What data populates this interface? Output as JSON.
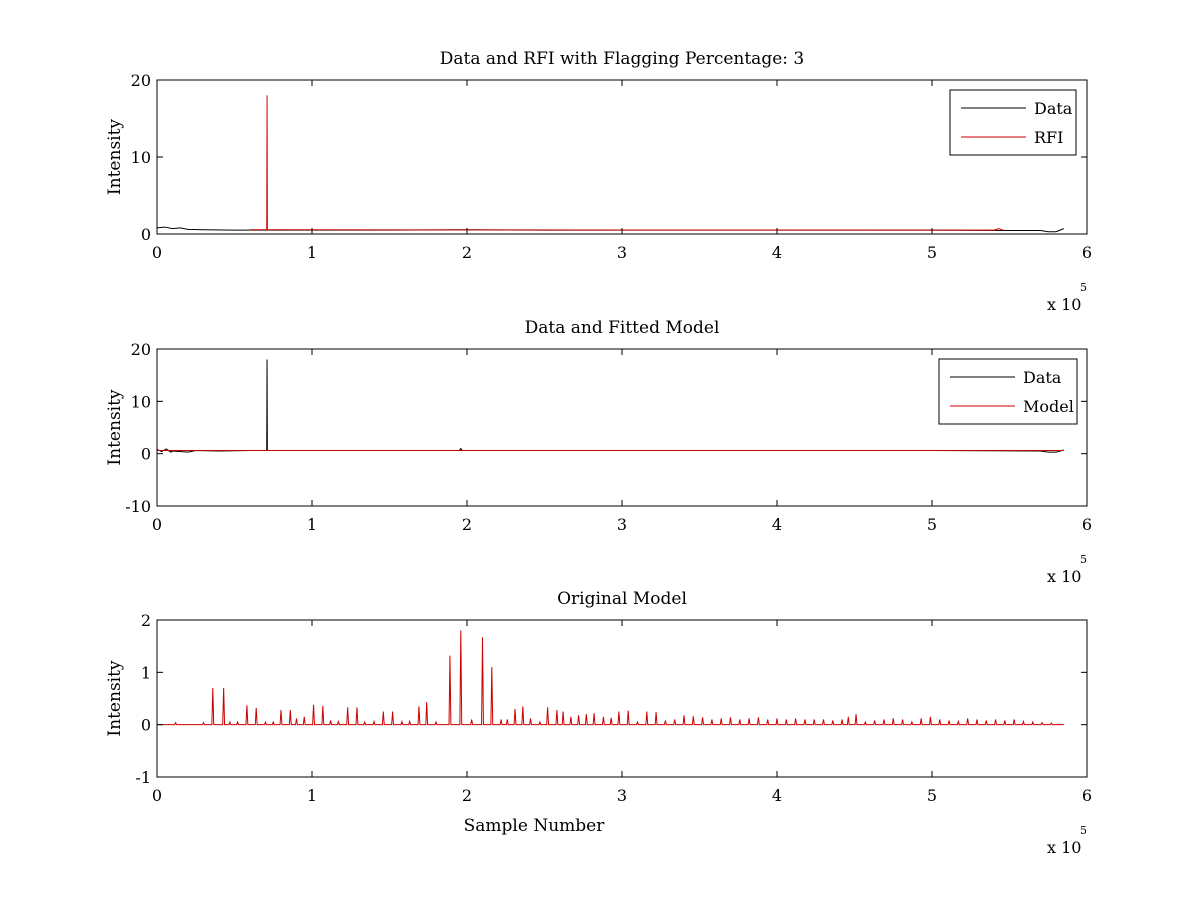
{
  "chart_data": [
    {
      "type": "line",
      "title": "Data and RFI with Flagging Percentage: 3",
      "xlabel": "",
      "ylabel": "Intensity",
      "xlim": [
        0,
        600000
      ],
      "ylim": [
        0,
        20
      ],
      "xticks": [
        0,
        1,
        2,
        3,
        4,
        5,
        6
      ],
      "yticks": [
        0,
        10,
        20
      ],
      "x_multiplier": {
        "base": "x 10",
        "exponent": "5"
      },
      "grid": false,
      "legend_position": "top-right",
      "series": [
        {
          "name": "Data",
          "color": "#000000",
          "x": [
            0,
            5000,
            10000,
            15000,
            20000,
            30000,
            50000,
            70000,
            100000,
            150000,
            200000,
            250000,
            300000,
            350000,
            400000,
            450000,
            500000,
            550000,
            570000,
            575000,
            580000,
            585000
          ],
          "y": [
            0.8,
            0.9,
            0.7,
            0.8,
            0.6,
            0.55,
            0.5,
            0.5,
            0.5,
            0.5,
            0.55,
            0.5,
            0.5,
            0.5,
            0.5,
            0.5,
            0.5,
            0.45,
            0.45,
            0.3,
            0.3,
            0.7
          ]
        },
        {
          "name": "RFI",
          "color": "#cc0000",
          "x": [
            60000,
            70800,
            71000,
            71200,
            80000,
            540000,
            543000,
            546000
          ],
          "y": [
            0.55,
            0.55,
            18.0,
            0.55,
            0.55,
            0.5,
            0.7,
            0.5
          ]
        }
      ]
    },
    {
      "type": "line",
      "title": "Data and Fitted Model",
      "xlabel": "",
      "ylabel": "Intensity",
      "xlim": [
        0,
        600000
      ],
      "ylim": [
        -10,
        20
      ],
      "xticks": [
        0,
        1,
        2,
        3,
        4,
        5,
        6
      ],
      "yticks": [
        -10,
        0,
        10,
        20
      ],
      "x_multiplier": {
        "base": "x 10",
        "exponent": "5"
      },
      "grid": false,
      "legend_position": "top-right",
      "series": [
        {
          "name": "Data",
          "color": "#000000",
          "x": [
            0,
            3000,
            6000,
            9000,
            10000,
            20000,
            25000,
            40000,
            60000,
            70800,
            71000,
            71200,
            100000,
            195000,
            196000,
            197000,
            300000,
            400000,
            500000,
            570000,
            575000,
            580000,
            585000
          ],
          "y": [
            0.8,
            0.4,
            0.9,
            0.3,
            0.5,
            0.3,
            0.6,
            0.5,
            0.6,
            0.6,
            18.0,
            0.6,
            0.6,
            0.6,
            1.0,
            0.6,
            0.6,
            0.6,
            0.6,
            0.5,
            0.3,
            0.3,
            0.7
          ]
        },
        {
          "name": "Model",
          "color": "#cc0000",
          "x": [
            0,
            585000
          ],
          "y": [
            0.6,
            0.6
          ]
        }
      ]
    },
    {
      "type": "line",
      "title": "Original Model",
      "xlabel": "Sample Number",
      "ylabel": "Intensity",
      "xlim": [
        0,
        600000
      ],
      "ylim": [
        -1,
        2
      ],
      "xticks": [
        0,
        1,
        2,
        3,
        4,
        5,
        6
      ],
      "yticks": [
        -1,
        0,
        1,
        2
      ],
      "x_multiplier": {
        "base": "x 10",
        "exponent": "5"
      },
      "grid": false,
      "series": [
        {
          "color": "#cc0000",
          "baseline": 0,
          "x_end": 585000,
          "peaks": {
            "x": [
              12000,
              30000,
              36000,
              43000,
              47000,
              52000,
              58000,
              64000,
              70000,
              75000,
              80000,
              86000,
              90000,
              95000,
              101000,
              107000,
              112000,
              117000,
              123000,
              129000,
              134000,
              140000,
              146000,
              152000,
              158000,
              163000,
              169000,
              174000,
              180000,
              189000,
              196000,
              203000,
              210000,
              216000,
              222000,
              226000,
              231000,
              236000,
              241000,
              247000,
              252000,
              258000,
              262000,
              267000,
              272000,
              277000,
              282000,
              288000,
              293000,
              298000,
              304000,
              310000,
              316000,
              322000,
              328000,
              334000,
              340000,
              346000,
              352000,
              358000,
              364000,
              370000,
              376000,
              382000,
              388000,
              394000,
              400000,
              406000,
              412000,
              418000,
              424000,
              430000,
              436000,
              442000,
              446000,
              451000,
              457000,
              463000,
              469000,
              475000,
              481000,
              487000,
              493000,
              499000,
              505000,
              511000,
              517000,
              523000,
              529000,
              535000,
              541000,
              547000,
              553000,
              559000,
              565000,
              571000,
              577000
            ],
            "y": [
              0.04,
              0.04,
              0.7,
              0.7,
              0.05,
              0.05,
              0.37,
              0.32,
              0.05,
              0.05,
              0.28,
              0.28,
              0.12,
              0.15,
              0.38,
              0.36,
              0.08,
              0.06,
              0.33,
              0.33,
              0.05,
              0.06,
              0.25,
              0.25,
              0.06,
              0.06,
              0.35,
              0.43,
              0.05,
              1.32,
              1.8,
              0.1,
              1.67,
              1.1,
              0.1,
              0.1,
              0.3,
              0.35,
              0.12,
              0.05,
              0.33,
              0.28,
              0.25,
              0.15,
              0.18,
              0.2,
              0.22,
              0.15,
              0.13,
              0.25,
              0.27,
              0.05,
              0.25,
              0.24,
              0.08,
              0.1,
              0.18,
              0.16,
              0.14,
              0.1,
              0.12,
              0.14,
              0.1,
              0.12,
              0.14,
              0.1,
              0.12,
              0.1,
              0.12,
              0.1,
              0.1,
              0.1,
              0.08,
              0.1,
              0.15,
              0.2,
              0.05,
              0.08,
              0.1,
              0.12,
              0.1,
              0.05,
              0.12,
              0.15,
              0.1,
              0.08,
              0.06,
              0.12,
              0.1,
              0.08,
              0.1,
              0.08,
              0.1,
              0.06,
              0.05,
              0.04,
              0.03
            ]
          }
        }
      ]
    }
  ]
}
